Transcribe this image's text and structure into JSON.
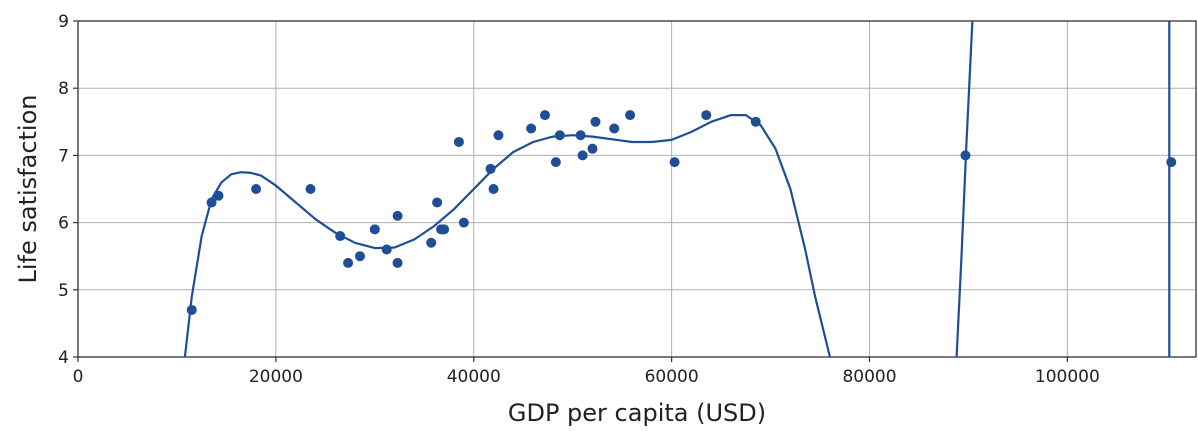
{
  "chart_data": {
    "type": "scatter",
    "title": "",
    "xlabel": "GDP per capita (USD)",
    "ylabel": "Life satisfaction",
    "xlim": [
      0,
      113000
    ],
    "ylim": [
      4,
      9
    ],
    "x_ticks": [
      0,
      20000,
      40000,
      60000,
      80000,
      100000
    ],
    "y_ticks": [
      4,
      5,
      6,
      7,
      8,
      9
    ],
    "x_tick_labels": [
      "0",
      "20000",
      "40000",
      "60000",
      "80000",
      "100000"
    ],
    "y_tick_labels": [
      "4",
      "5",
      "6",
      "7",
      "8",
      "9"
    ],
    "grid": true,
    "legend": "none",
    "colors": {
      "series": "#1f4e96",
      "grid": "#b0b0b0",
      "axis": "#333333"
    },
    "series": [
      {
        "kind": "points",
        "x": [
          11500,
          13500,
          14200,
          18000,
          23500,
          26500,
          27300,
          28500,
          30000,
          31200,
          32300,
          32300,
          35700,
          36300,
          36700,
          37000,
          38500,
          39000,
          41700,
          42000,
          42500,
          45800,
          47200,
          48300,
          48700,
          50800,
          51000,
          52000,
          52300,
          54200,
          55800,
          60300,
          63500,
          68500,
          89700,
          110500
        ],
        "y": [
          4.7,
          6.3,
          6.4,
          6.5,
          6.5,
          5.8,
          5.4,
          5.5,
          5.9,
          5.6,
          6.1,
          5.4,
          5.7,
          6.3,
          5.9,
          5.9,
          7.2,
          6.0,
          6.8,
          6.5,
          7.3,
          7.4,
          7.6,
          6.9,
          7.3,
          7.3,
          7.0,
          7.1,
          7.5,
          7.4,
          7.6,
          6.9,
          7.6,
          7.5,
          7.0,
          6.9
        ]
      },
      {
        "kind": "curve",
        "x": [
          10800,
          11500,
          12500,
          13500,
          14500,
          15500,
          16500,
          17500,
          18500,
          20000,
          22000,
          24000,
          26000,
          28000,
          30000,
          32000,
          34000,
          36000,
          38000,
          40000,
          42000,
          44000,
          46000,
          48000,
          50000,
          52000,
          54000,
          56000,
          58000,
          60000,
          62000,
          64000,
          66000,
          67500,
          69000,
          70500,
          72000,
          73500,
          74500,
          75500,
          76000
        ],
        "y": [
          4.0,
          4.9,
          5.8,
          6.35,
          6.6,
          6.72,
          6.75,
          6.74,
          6.7,
          6.55,
          6.3,
          6.05,
          5.85,
          5.7,
          5.62,
          5.63,
          5.75,
          5.95,
          6.2,
          6.5,
          6.8,
          7.05,
          7.2,
          7.28,
          7.3,
          7.28,
          7.24,
          7.2,
          7.2,
          7.23,
          7.35,
          7.5,
          7.6,
          7.6,
          7.45,
          7.1,
          6.5,
          5.6,
          4.9,
          4.3,
          4.0
        ]
      },
      {
        "kind": "curve",
        "x": [
          88800,
          89300,
          89800,
          90400
        ],
        "y": [
          4.0,
          5.5,
          7.2,
          9.0
        ]
      },
      {
        "kind": "curve",
        "x": [
          110300,
          110300
        ],
        "y": [
          4.0,
          9.0
        ]
      }
    ]
  }
}
